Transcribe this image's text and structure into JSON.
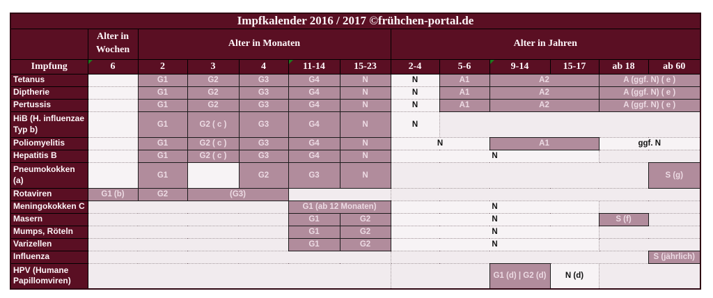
{
  "title": "Impfkalender 2016 / 2017 ©frühchen-portal.de",
  "header_groups": [
    {
      "label": "",
      "span": 1
    },
    {
      "label": "Alter in Wochen",
      "span": 1
    },
    {
      "label": "Alter in Monaten",
      "span": 5
    },
    {
      "label": "Alter in Jahren",
      "span": 6
    }
  ],
  "columns": [
    {
      "label": "Impfung",
      "marker": false
    },
    {
      "label": "6",
      "marker": true
    },
    {
      "label": "2",
      "marker": false
    },
    {
      "label": "3",
      "marker": false
    },
    {
      "label": "4",
      "marker": false
    },
    {
      "label": "11-14",
      "marker": true
    },
    {
      "label": "15-23",
      "marker": false
    },
    {
      "label": "2-4",
      "marker": false
    },
    {
      "label": "5-6",
      "marker": false
    },
    {
      "label": "9-14",
      "marker": true
    },
    {
      "label": "15-17",
      "marker": false
    },
    {
      "label": "ab 18",
      "marker": false
    },
    {
      "label": "ab 60",
      "marker": false
    }
  ],
  "rows": [
    {
      "label": "Tetanus",
      "tall": false,
      "cells": [
        {
          "span": 1,
          "text": "",
          "type": "white"
        },
        {
          "span": 1,
          "text": "G1",
          "type": "pink"
        },
        {
          "span": 1,
          "text": "G2",
          "type": "pink"
        },
        {
          "span": 1,
          "text": "G3",
          "type": "pink"
        },
        {
          "span": 1,
          "text": "G4",
          "type": "pink"
        },
        {
          "span": 1,
          "text": "N",
          "type": "pink"
        },
        {
          "span": 1,
          "text": "N",
          "type": "white"
        },
        {
          "span": 1,
          "text": "A1",
          "type": "pink"
        },
        {
          "span": 2,
          "text": "A2",
          "type": "pink"
        },
        {
          "span": 2,
          "text": "A (ggf. N) ( e )",
          "type": "pink"
        }
      ]
    },
    {
      "label": "Diptherie",
      "tall": false,
      "cells": [
        {
          "span": 1,
          "text": "",
          "type": "white"
        },
        {
          "span": 1,
          "text": "G1",
          "type": "pink"
        },
        {
          "span": 1,
          "text": "G2",
          "type": "pink"
        },
        {
          "span": 1,
          "text": "G3",
          "type": "pink"
        },
        {
          "span": 1,
          "text": "G4",
          "type": "pink"
        },
        {
          "span": 1,
          "text": "N",
          "type": "pink"
        },
        {
          "span": 1,
          "text": "N",
          "type": "white"
        },
        {
          "span": 1,
          "text": "A1",
          "type": "pink"
        },
        {
          "span": 2,
          "text": "A2",
          "type": "pink"
        },
        {
          "span": 2,
          "text": "A (ggf. N) ( e )",
          "type": "pink"
        }
      ]
    },
    {
      "label": "Pertussis",
      "tall": false,
      "cells": [
        {
          "span": 1,
          "text": "",
          "type": "white"
        },
        {
          "span": 1,
          "text": "G1",
          "type": "pink"
        },
        {
          "span": 1,
          "text": "G2",
          "type": "pink"
        },
        {
          "span": 1,
          "text": "G3",
          "type": "pink"
        },
        {
          "span": 1,
          "text": "G4",
          "type": "pink"
        },
        {
          "span": 1,
          "text": "N",
          "type": "pink"
        },
        {
          "span": 1,
          "text": "N",
          "type": "white"
        },
        {
          "span": 1,
          "text": "A1",
          "type": "pink"
        },
        {
          "span": 2,
          "text": "A2",
          "type": "pink"
        },
        {
          "span": 2,
          "text": "A (ggf. N) ( e )",
          "type": "pink"
        }
      ]
    },
    {
      "label": "HiB (H. influenzae Typ b)",
      "tall": true,
      "cells": [
        {
          "span": 1,
          "text": "",
          "type": "white"
        },
        {
          "span": 1,
          "text": "G1",
          "type": "pink"
        },
        {
          "span": 1,
          "text": "G2 ( c )",
          "type": "pink"
        },
        {
          "span": 1,
          "text": "G3",
          "type": "pink"
        },
        {
          "span": 1,
          "text": "G4",
          "type": "pink"
        },
        {
          "span": 1,
          "text": "N",
          "type": "pink"
        },
        {
          "span": 1,
          "text": "N",
          "type": "white"
        },
        {
          "span": 5,
          "text": "",
          "type": "empty"
        }
      ]
    },
    {
      "label": "Poliomyelitis",
      "tall": false,
      "cells": [
        {
          "span": 1,
          "text": "",
          "type": "white"
        },
        {
          "span": 1,
          "text": "G1",
          "type": "pink"
        },
        {
          "span": 1,
          "text": "G2 ( c )",
          "type": "pink"
        },
        {
          "span": 1,
          "text": "G3",
          "type": "pink"
        },
        {
          "span": 1,
          "text": "G4",
          "type": "pink"
        },
        {
          "span": 1,
          "text": "N",
          "type": "pink"
        },
        {
          "span": 2,
          "text": "N",
          "type": "white"
        },
        {
          "span": 2,
          "text": "A1",
          "type": "pink"
        },
        {
          "span": 2,
          "text": "ggf. N",
          "type": "white"
        }
      ]
    },
    {
      "label": "Hepatitis B",
      "tall": false,
      "cells": [
        {
          "span": 1,
          "text": "",
          "type": "white"
        },
        {
          "span": 1,
          "text": "G1",
          "type": "pink"
        },
        {
          "span": 1,
          "text": "G2 ( c )",
          "type": "pink"
        },
        {
          "span": 1,
          "text": "G3",
          "type": "pink"
        },
        {
          "span": 1,
          "text": "G4",
          "type": "pink"
        },
        {
          "span": 1,
          "text": "N",
          "type": "pink"
        },
        {
          "span": 4,
          "text": "N",
          "type": "white"
        },
        {
          "span": 2,
          "text": "",
          "type": "empty"
        }
      ]
    },
    {
      "label": "Pneumokokken (a)",
      "tall": true,
      "cells": [
        {
          "span": 1,
          "text": "",
          "type": "white"
        },
        {
          "span": 1,
          "text": "G1",
          "type": "pink"
        },
        {
          "span": 1,
          "text": "",
          "type": "white"
        },
        {
          "span": 1,
          "text": "G2",
          "type": "pink"
        },
        {
          "span": 1,
          "text": "G3",
          "type": "pink"
        },
        {
          "span": 1,
          "text": "N",
          "type": "pink"
        },
        {
          "span": 5,
          "text": "",
          "type": "empty"
        },
        {
          "span": 1,
          "text": "S (g)",
          "type": "pink"
        }
      ]
    },
    {
      "label": "Rotaviren",
      "tall": false,
      "cells": [
        {
          "span": 1,
          "text": "G1 (b)",
          "type": "pink"
        },
        {
          "span": 1,
          "text": "G2",
          "type": "pink"
        },
        {
          "span": 2,
          "text": "(G3)",
          "type": "pink"
        },
        {
          "span": 2,
          "text": "",
          "type": "empty"
        },
        {
          "span": 6,
          "text": "",
          "type": "empty"
        }
      ]
    },
    {
      "label": "Meningokokken C",
      "tall": false,
      "cells": [
        {
          "span": 4,
          "text": "",
          "type": "empty"
        },
        {
          "span": 2,
          "text": "G1 (ab 12 Monaten)",
          "type": "pink"
        },
        {
          "span": 4,
          "text": "N",
          "type": "white"
        },
        {
          "span": 2,
          "text": "",
          "type": "empty"
        }
      ]
    },
    {
      "label": "Masern",
      "tall": false,
      "cells": [
        {
          "span": 4,
          "text": "",
          "type": "empty"
        },
        {
          "span": 1,
          "text": "G1",
          "type": "pink"
        },
        {
          "span": 1,
          "text": "G2",
          "type": "pink"
        },
        {
          "span": 4,
          "text": "N",
          "type": "white"
        },
        {
          "span": 1,
          "text": "S (f)",
          "type": "pink"
        },
        {
          "span": 1,
          "text": "",
          "type": "empty"
        }
      ]
    },
    {
      "label": "Mumps, Röteln",
      "tall": false,
      "cells": [
        {
          "span": 4,
          "text": "",
          "type": "empty"
        },
        {
          "span": 1,
          "text": "G1",
          "type": "pink"
        },
        {
          "span": 1,
          "text": "G2",
          "type": "pink"
        },
        {
          "span": 4,
          "text": "N",
          "type": "white"
        },
        {
          "span": 2,
          "text": "",
          "type": "empty"
        }
      ]
    },
    {
      "label": "Varizellen",
      "tall": false,
      "cells": [
        {
          "span": 4,
          "text": "",
          "type": "empty"
        },
        {
          "span": 1,
          "text": "G1",
          "type": "pink"
        },
        {
          "span": 1,
          "text": "G2",
          "type": "pink"
        },
        {
          "span": 4,
          "text": "N",
          "type": "white"
        },
        {
          "span": 2,
          "text": "",
          "type": "empty"
        }
      ]
    },
    {
      "label": "Influenza",
      "tall": false,
      "cells": [
        {
          "span": 6,
          "text": "",
          "type": "empty"
        },
        {
          "span": 5,
          "text": "",
          "type": "empty"
        },
        {
          "span": 1,
          "text": "S (jährlich)",
          "type": "pink"
        }
      ]
    },
    {
      "label": "HPV (Humane Papillomviren)",
      "tall": true,
      "cells": [
        {
          "span": 6,
          "text": "",
          "type": "empty"
        },
        {
          "span": 2,
          "text": "",
          "type": "empty"
        },
        {
          "span": 1,
          "text": "G1 (d) | G2 (d)",
          "type": "pink"
        },
        {
          "span": 1,
          "text": "N (d)",
          "type": "white"
        },
        {
          "span": 2,
          "text": "",
          "type": "empty"
        }
      ]
    }
  ],
  "colors": {
    "header_bg": "#5a0f23",
    "header_text": "#fdf5f8",
    "cell_pink_bg": "#b18c9c",
    "cell_pink_text": "#ecdae3",
    "cell_light_bg": "#f1ebee",
    "cell_white_bg": "#f7f3f5",
    "comment_marker_green": "#1f7a1f",
    "grid_border": "#1b1b1b"
  }
}
